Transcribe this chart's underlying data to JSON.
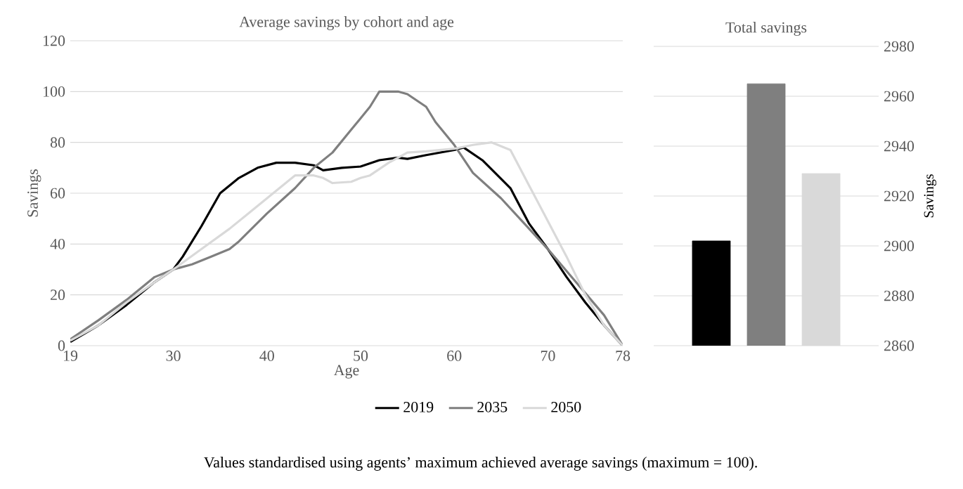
{
  "chart_data": [
    {
      "type": "line",
      "title": "Average savings by cohort and age",
      "xlabel": "Age",
      "ylabel": "Savings",
      "xlim": [
        19,
        78
      ],
      "xticks": [
        19,
        30,
        40,
        50,
        60,
        70,
        78
      ],
      "ylim": [
        0,
        120
      ],
      "yticks": [
        0,
        20,
        40,
        60,
        80,
        100,
        120
      ],
      "grid": "y",
      "legend": "bottom",
      "line_style": "solid",
      "annotations": [
        "Values standardised using agents’ maximum achieved average savings (maximum = 100)."
      ],
      "series": [
        {
          "name": "2019",
          "color": "#000000",
          "x": [
            19,
            22,
            25,
            28,
            30,
            31,
            33,
            35,
            37,
            39,
            41,
            43,
            45,
            46,
            48,
            50,
            52,
            54,
            55,
            57,
            60,
            61,
            63,
            66,
            68,
            70,
            72,
            74,
            76,
            78
          ],
          "values": [
            1.5,
            8,
            16,
            25,
            30,
            35,
            47,
            60,
            66,
            70,
            72,
            72,
            71,
            69,
            70,
            70.5,
            73,
            74,
            73.5,
            75,
            77,
            78,
            73,
            62,
            48,
            38,
            27,
            17,
            8,
            0
          ]
        },
        {
          "name": "2035",
          "color": "#7f7f7f",
          "x": [
            19,
            22,
            25,
            28,
            30,
            32,
            34,
            36,
            37,
            40,
            43,
            45,
            47,
            49,
            51,
            52,
            54,
            55,
            57,
            58,
            60,
            62,
            65,
            68,
            70,
            73,
            76,
            78
          ],
          "values": [
            2.5,
            10,
            18,
            27,
            30,
            32,
            35,
            38,
            41,
            52,
            62,
            70,
            76,
            85,
            94,
            100,
            100,
            99,
            94,
            88,
            79,
            68,
            58,
            46,
            38,
            25,
            12,
            0
          ]
        },
        {
          "name": "2050",
          "color": "#d9d9d9",
          "x": [
            19,
            22,
            25,
            28,
            30,
            33,
            36,
            38,
            40,
            42,
            43,
            45,
            46,
            47,
            49,
            50,
            51,
            53,
            55,
            57,
            60,
            62,
            64,
            66,
            68,
            70,
            72,
            74,
            76,
            78
          ],
          "values": [
            2,
            8,
            17,
            25,
            30,
            38,
            46,
            52,
            58,
            64,
            67,
            67,
            66,
            64,
            64.5,
            66,
            67,
            72,
            76,
            76.5,
            77.5,
            79,
            80,
            77,
            63,
            49,
            35,
            20,
            8,
            0
          ]
        }
      ]
    },
    {
      "type": "bar",
      "title": "Total savings",
      "ylabel": "Savings",
      "categories": [
        null,
        null,
        null
      ],
      "values": [
        2902,
        2965,
        2929
      ],
      "colors": [
        "#000000",
        "#7f7f7f",
        "#d9d9d9"
      ],
      "ylim": [
        2860,
        2980
      ],
      "yticks": [
        2860,
        2880,
        2900,
        2920,
        2940,
        2960,
        2980
      ],
      "grid": "y",
      "tick_labels": "y"
    }
  ]
}
